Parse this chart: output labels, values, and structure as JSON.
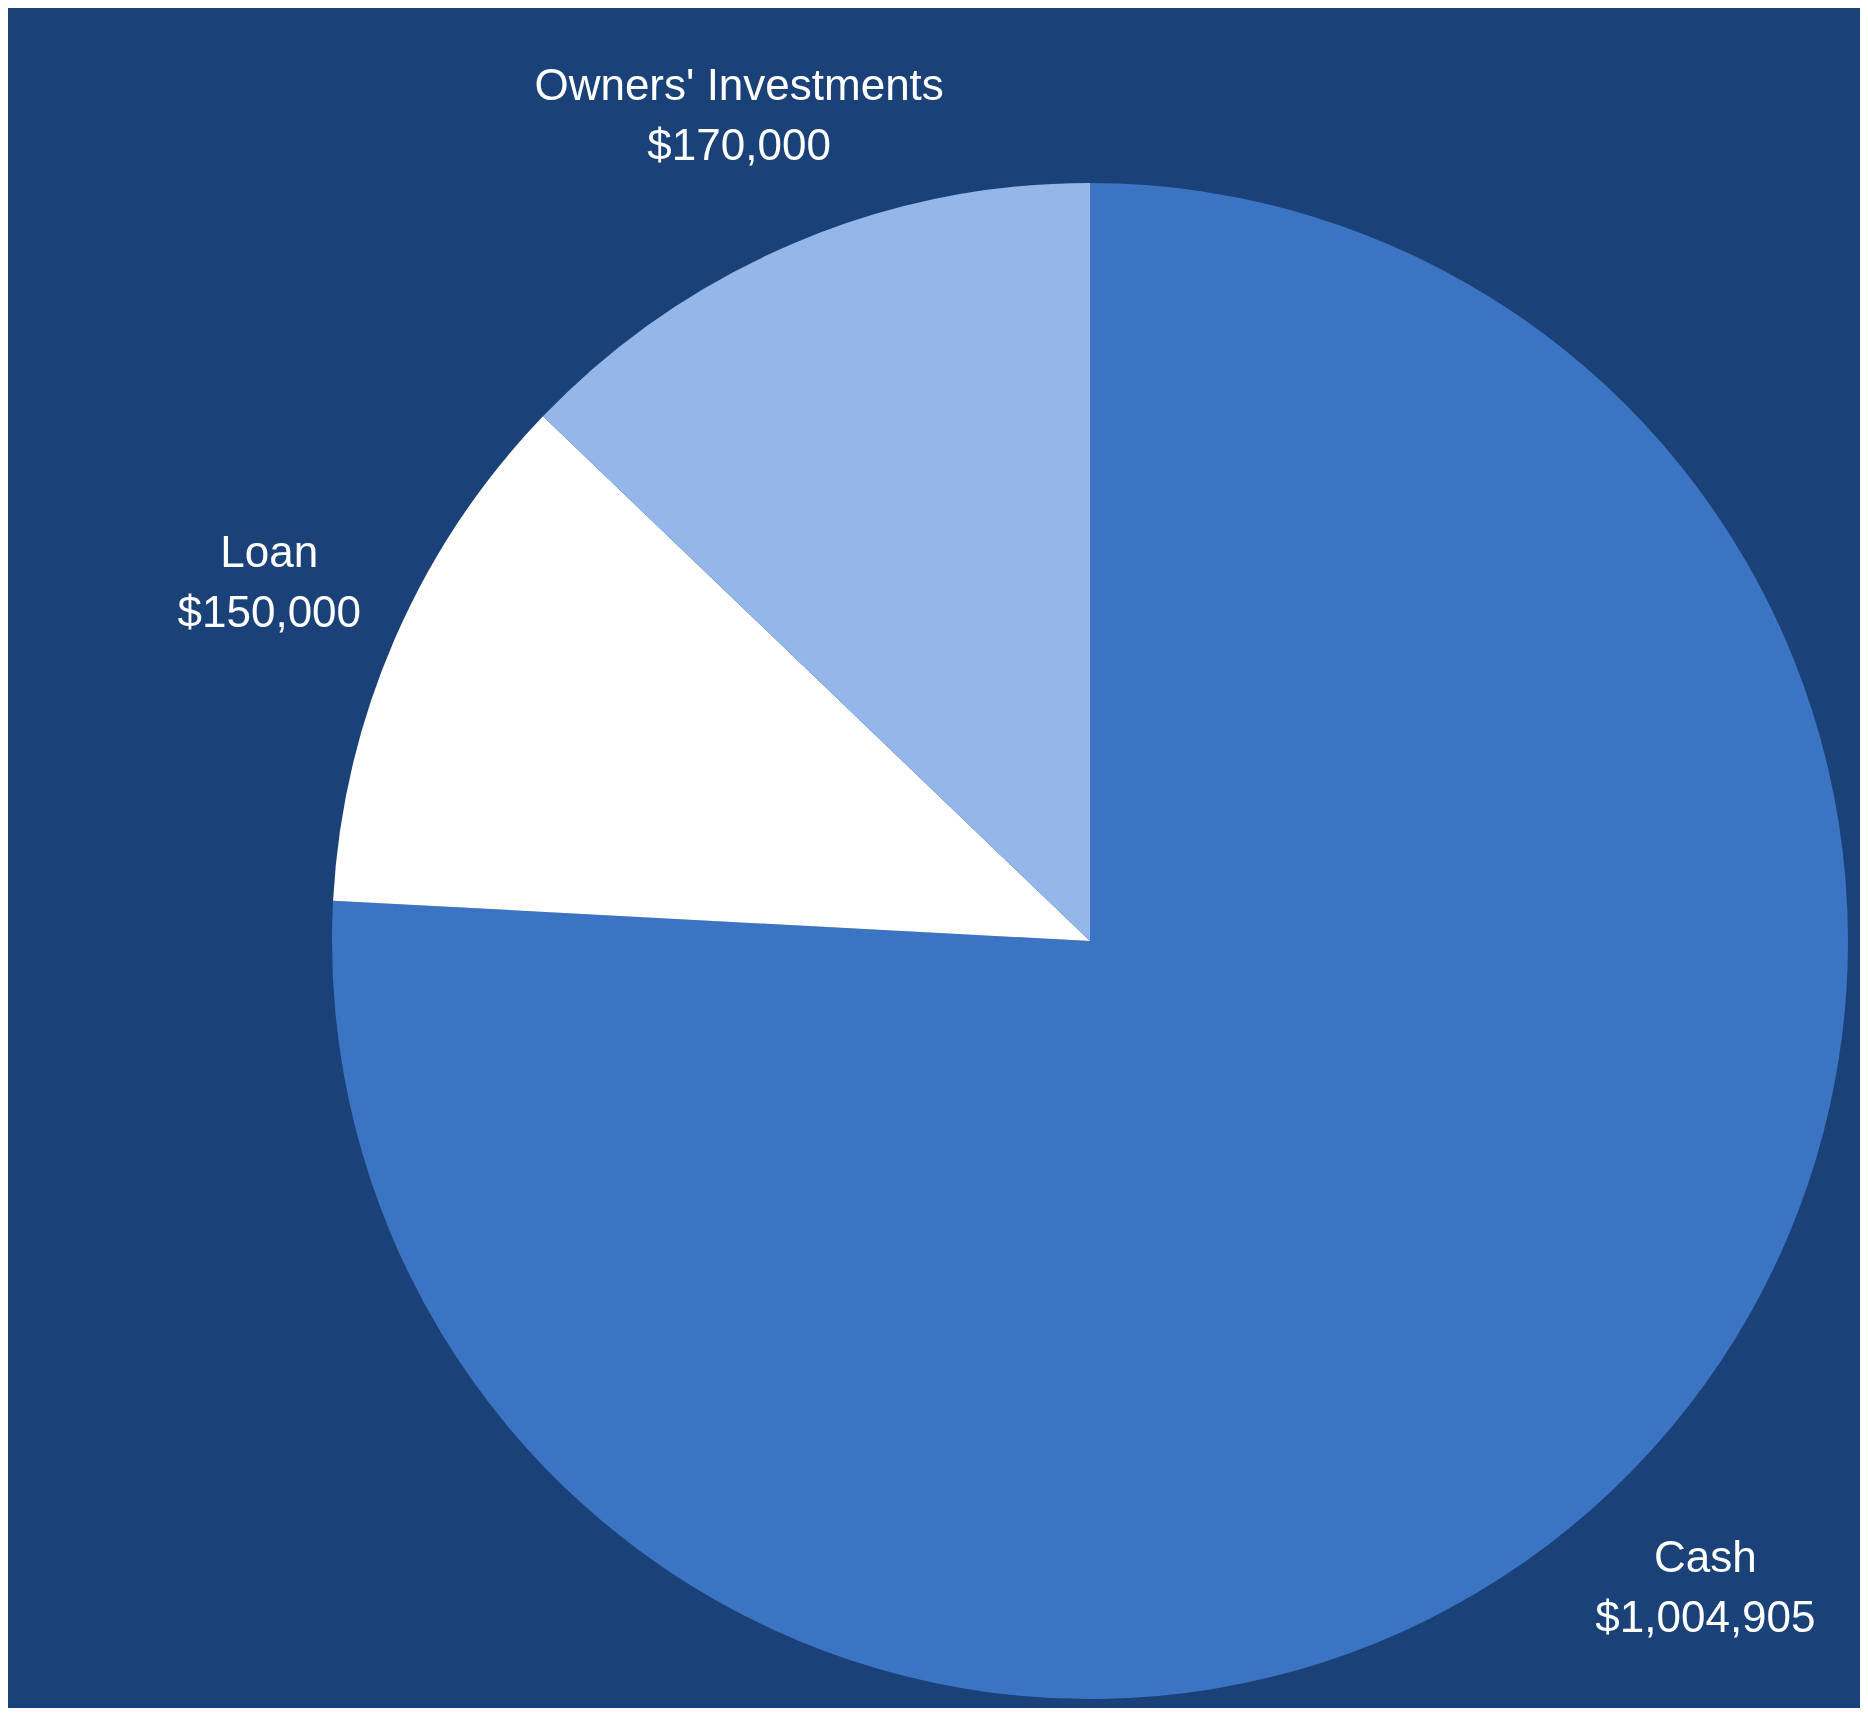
{
  "chart_data": {
    "type": "pie",
    "categories": [
      "Cash",
      "Loan",
      "Owners' Investments"
    ],
    "values": [
      1004905,
      150000,
      170000
    ],
    "colors": [
      "#3c74c4",
      "#ffffff",
      "#94b6e9"
    ],
    "value_labels": [
      "$1,004,905",
      "$150,000",
      "$170,000"
    ],
    "legend": false
  }
}
